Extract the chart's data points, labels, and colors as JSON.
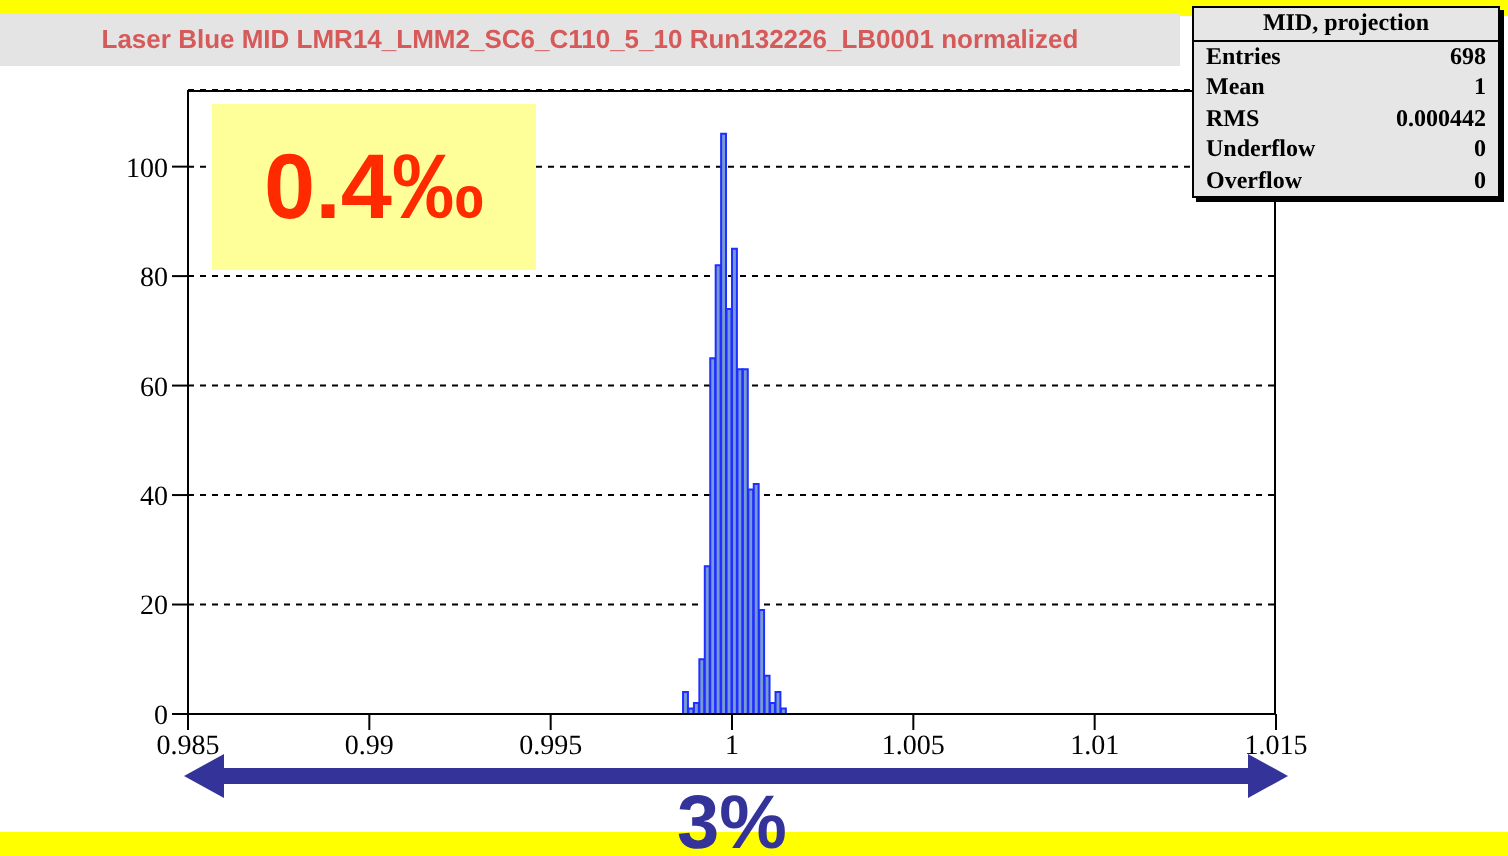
{
  "chart_data": {
    "type": "histogram",
    "title": "Laser Blue MID LMR14_LMM2_SC6_C110_5_10 Run132226_LB0001 normalized",
    "bins": [
      0.99865,
      0.9988,
      0.99895,
      0.9991,
      0.99925,
      0.9994,
      0.99955,
      0.9997,
      0.99985,
      1.0,
      1.00015,
      1.0003,
      1.00045,
      1.0006,
      1.00075,
      1.0009,
      1.00105,
      1.0012,
      1.00135,
      1.0015
    ],
    "values": [
      4,
      1,
      2,
      10,
      27,
      65,
      82,
      106,
      74,
      85,
      63,
      63,
      41,
      42,
      19,
      7,
      2,
      4,
      1
    ],
    "color": "#7799d6",
    "xlim": [
      0.985,
      1.015
    ],
    "xticks": [
      0.985,
      0.99,
      0.995,
      1,
      1.005,
      1.01,
      1.015
    ],
    "ylim": [
      0,
      114
    ],
    "yticks": [
      0,
      20,
      40,
      60,
      80,
      100
    ],
    "grid": "y",
    "line_style": "dashed",
    "annotations": [
      "0.4‰",
      "3%",
      "MID, projection",
      "Entries",
      "698",
      "Mean",
      "1",
      "RMS",
      "0.000442",
      "Underflow",
      "0",
      "Overflow",
      "0"
    ]
  }
}
